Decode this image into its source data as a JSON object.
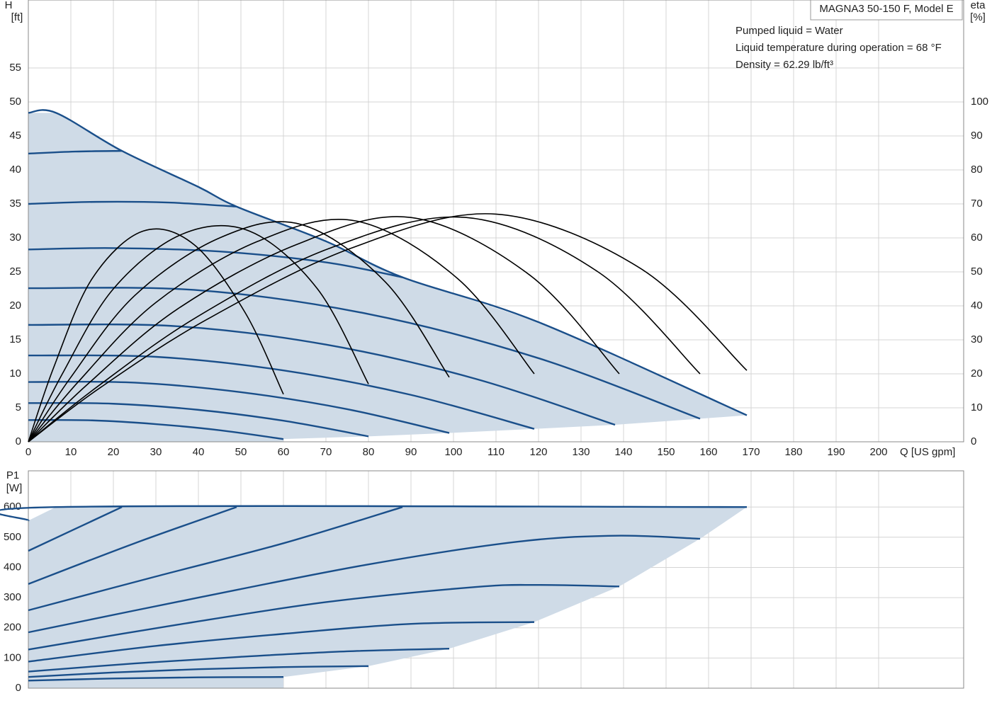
{
  "chart_data": [
    {
      "type": "line",
      "title": "MAGNA3 50-150 F, Model E",
      "annotations": [
        "Pumped liquid = Water",
        "Liquid temperature during operation = 68 °F",
        "Density = 62.29 lb/ft³"
      ],
      "ylabel": "H",
      "ylabel_unit": "[ft]",
      "y2label": "eta",
      "y2label_unit": "[%]",
      "xlabel": "Q [US gpm]",
      "xlim": [
        0,
        220
      ],
      "xticks": [
        0,
        10,
        20,
        30,
        40,
        50,
        60,
        70,
        80,
        90,
        100,
        110,
        120,
        130,
        140,
        150,
        160,
        170,
        180,
        190,
        200
      ],
      "ylim": [
        0,
        65
      ],
      "yticks": [
        0,
        5,
        10,
        15,
        20,
        25,
        30,
        35,
        40,
        45,
        50,
        55
      ],
      "y2lim": [
        0,
        130
      ],
      "y2ticks": [
        0,
        10,
        20,
        30,
        40,
        50,
        60,
        70,
        80,
        90,
        100
      ],
      "grid": true,
      "fill_color": "#cfdbe7",
      "show_x_labels": true,
      "series": [
        {
          "color": "#1a4f8a",
          "x": [
            0,
            6.5,
            22,
            40,
            49,
            70,
            88,
            120,
            169
          ],
          "values": [
            48.4,
            48.4,
            42.8,
            37.5,
            34.6,
            29.5,
            24.2,
            17.6,
            3.9
          ]
        },
        {
          "color": "#1a4f8a",
          "x": [
            0,
            15,
            30,
            45,
            60
          ],
          "values": [
            3.2,
            3.15,
            2.6,
            1.7,
            0.4
          ]
        },
        {
          "color": "#1a4f8a",
          "x": [
            0,
            20,
            40,
            60,
            80
          ],
          "values": [
            5.7,
            5.6,
            4.7,
            3.1,
            0.8
          ]
        },
        {
          "color": "#1a4f8a",
          "x": [
            0,
            25,
            50,
            75,
            99
          ],
          "values": [
            8.8,
            8.7,
            7.3,
            4.8,
            1.3
          ]
        },
        {
          "color": "#1a4f8a",
          "x": [
            0,
            30,
            60,
            90,
            119
          ],
          "values": [
            12.7,
            12.5,
            10.5,
            6.9,
            1.9
          ]
        },
        {
          "color": "#1a4f8a",
          "x": [
            0,
            35,
            70,
            105,
            138
          ],
          "values": [
            17.2,
            17,
            14.3,
            9.3,
            2.5
          ]
        },
        {
          "color": "#1a4f8a",
          "x": [
            0,
            40,
            80,
            120,
            158
          ],
          "values": [
            22.6,
            22.3,
            18.8,
            12.3,
            3.4
          ]
        },
        {
          "color": "#1a4f8a",
          "x": [
            0,
            20,
            45,
            70,
            88
          ],
          "values": [
            28.3,
            28.5,
            28,
            26.4,
            24.2
          ]
        },
        {
          "color": "#1a4f8a",
          "x": [
            0,
            16,
            33,
            49
          ],
          "values": [
            35,
            35.3,
            35.2,
            34.6
          ]
        },
        {
          "color": "#1a4f8a",
          "x": [
            0,
            11,
            22
          ],
          "values": [
            42.4,
            42.7,
            42.8
          ]
        },
        {
          "color": "#000000",
          "axis": "y2",
          "x": [
            0,
            6,
            15,
            27,
            39,
            51,
            60
          ],
          "values": [
            0,
            22,
            48,
            62,
            58,
            38,
            14
          ]
        },
        {
          "color": "#000000",
          "axis": "y2",
          "x": [
            0,
            8,
            20,
            36,
            52,
            68,
            80
          ],
          "values": [
            0,
            20,
            45,
            61,
            62,
            45,
            17
          ]
        },
        {
          "color": "#000000",
          "axis": "y2",
          "x": [
            0,
            10,
            25,
            45,
            64,
            84,
            99
          ],
          "values": [
            0,
            19,
            43,
            60,
            64,
            47,
            19
          ]
        },
        {
          "color": "#000000",
          "axis": "y2",
          "x": [
            0,
            12,
            30,
            54,
            77,
            101,
            119
          ],
          "values": [
            0,
            18,
            41,
            59,
            65,
            48,
            20
          ]
        },
        {
          "color": "#000000",
          "axis": "y2",
          "x": [
            0,
            14,
            35,
            63,
            90,
            118,
            139
          ],
          "values": [
            0,
            17,
            39,
            58,
            66,
            49,
            20
          ]
        },
        {
          "color": "#000000",
          "axis": "y2",
          "x": [
            0,
            16,
            40,
            71,
            103,
            134,
            158
          ],
          "values": [
            0,
            16,
            37,
            57,
            66,
            50,
            20
          ]
        },
        {
          "color": "#000000",
          "axis": "y2",
          "x": [
            0,
            17,
            42,
            76,
            110,
            144,
            169
          ],
          "values": [
            0,
            16,
            36,
            57,
            67,
            51,
            21
          ]
        }
      ]
    },
    {
      "type": "line",
      "ylabel": "P1",
      "ylabel_unit": "[W]",
      "xlim": [
        0,
        220
      ],
      "xticks": [
        0,
        10,
        20,
        30,
        40,
        50,
        60,
        70,
        80,
        90,
        100,
        110,
        120,
        130,
        140,
        150,
        160,
        170,
        180,
        190,
        200
      ],
      "ylim": [
        0,
        720
      ],
      "yticks": [
        0,
        100,
        200,
        300,
        400,
        500,
        600
      ],
      "grid": true,
      "fill_color": "#cfdbe7",
      "show_x_labels": false,
      "series": [
        {
          "color": "#1a4f8a",
          "x": [
            0,
            6.5,
            169
          ],
          "values": [
            555,
            600,
            600
          ]
        },
        {
          "color": "#1a4f8a",
          "x": [
            0,
            20,
            40,
            60
          ],
          "values": [
            25,
            32,
            36,
            37
          ]
        },
        {
          "color": "#1a4f8a",
          "x": [
            0,
            20,
            40,
            60,
            80
          ],
          "values": [
            37,
            52,
            63,
            70,
            73
          ]
        },
        {
          "color": "#1a4f8a",
          "x": [
            0,
            25,
            50,
            75,
            99
          ],
          "values": [
            55,
            82,
            104,
            122,
            131
          ]
        },
        {
          "color": "#1a4f8a",
          "x": [
            0,
            30,
            60,
            90,
            119
          ],
          "values": [
            88,
            140,
            180,
            213,
            219
          ]
        },
        {
          "color": "#1a4f8a",
          "x": [
            0,
            35,
            70,
            105,
            120,
            139
          ],
          "values": [
            128,
            210,
            285,
            335,
            342,
            337
          ]
        },
        {
          "color": "#1a4f8a",
          "x": [
            0,
            40,
            80,
            115,
            138,
            158
          ],
          "values": [
            185,
            300,
            410,
            485,
            505,
            495
          ]
        },
        {
          "color": "#1a4f8a",
          "x": [
            0,
            30,
            60,
            88
          ],
          "values": [
            258,
            370,
            480,
            600
          ]
        },
        {
          "color": "#1a4f8a",
          "x": [
            0,
            25,
            49
          ],
          "values": [
            345,
            480,
            600
          ]
        },
        {
          "color": "#1a4f8a",
          "x": [
            0,
            22
          ],
          "values": [
            455,
            600
          ]
        }
      ]
    }
  ]
}
